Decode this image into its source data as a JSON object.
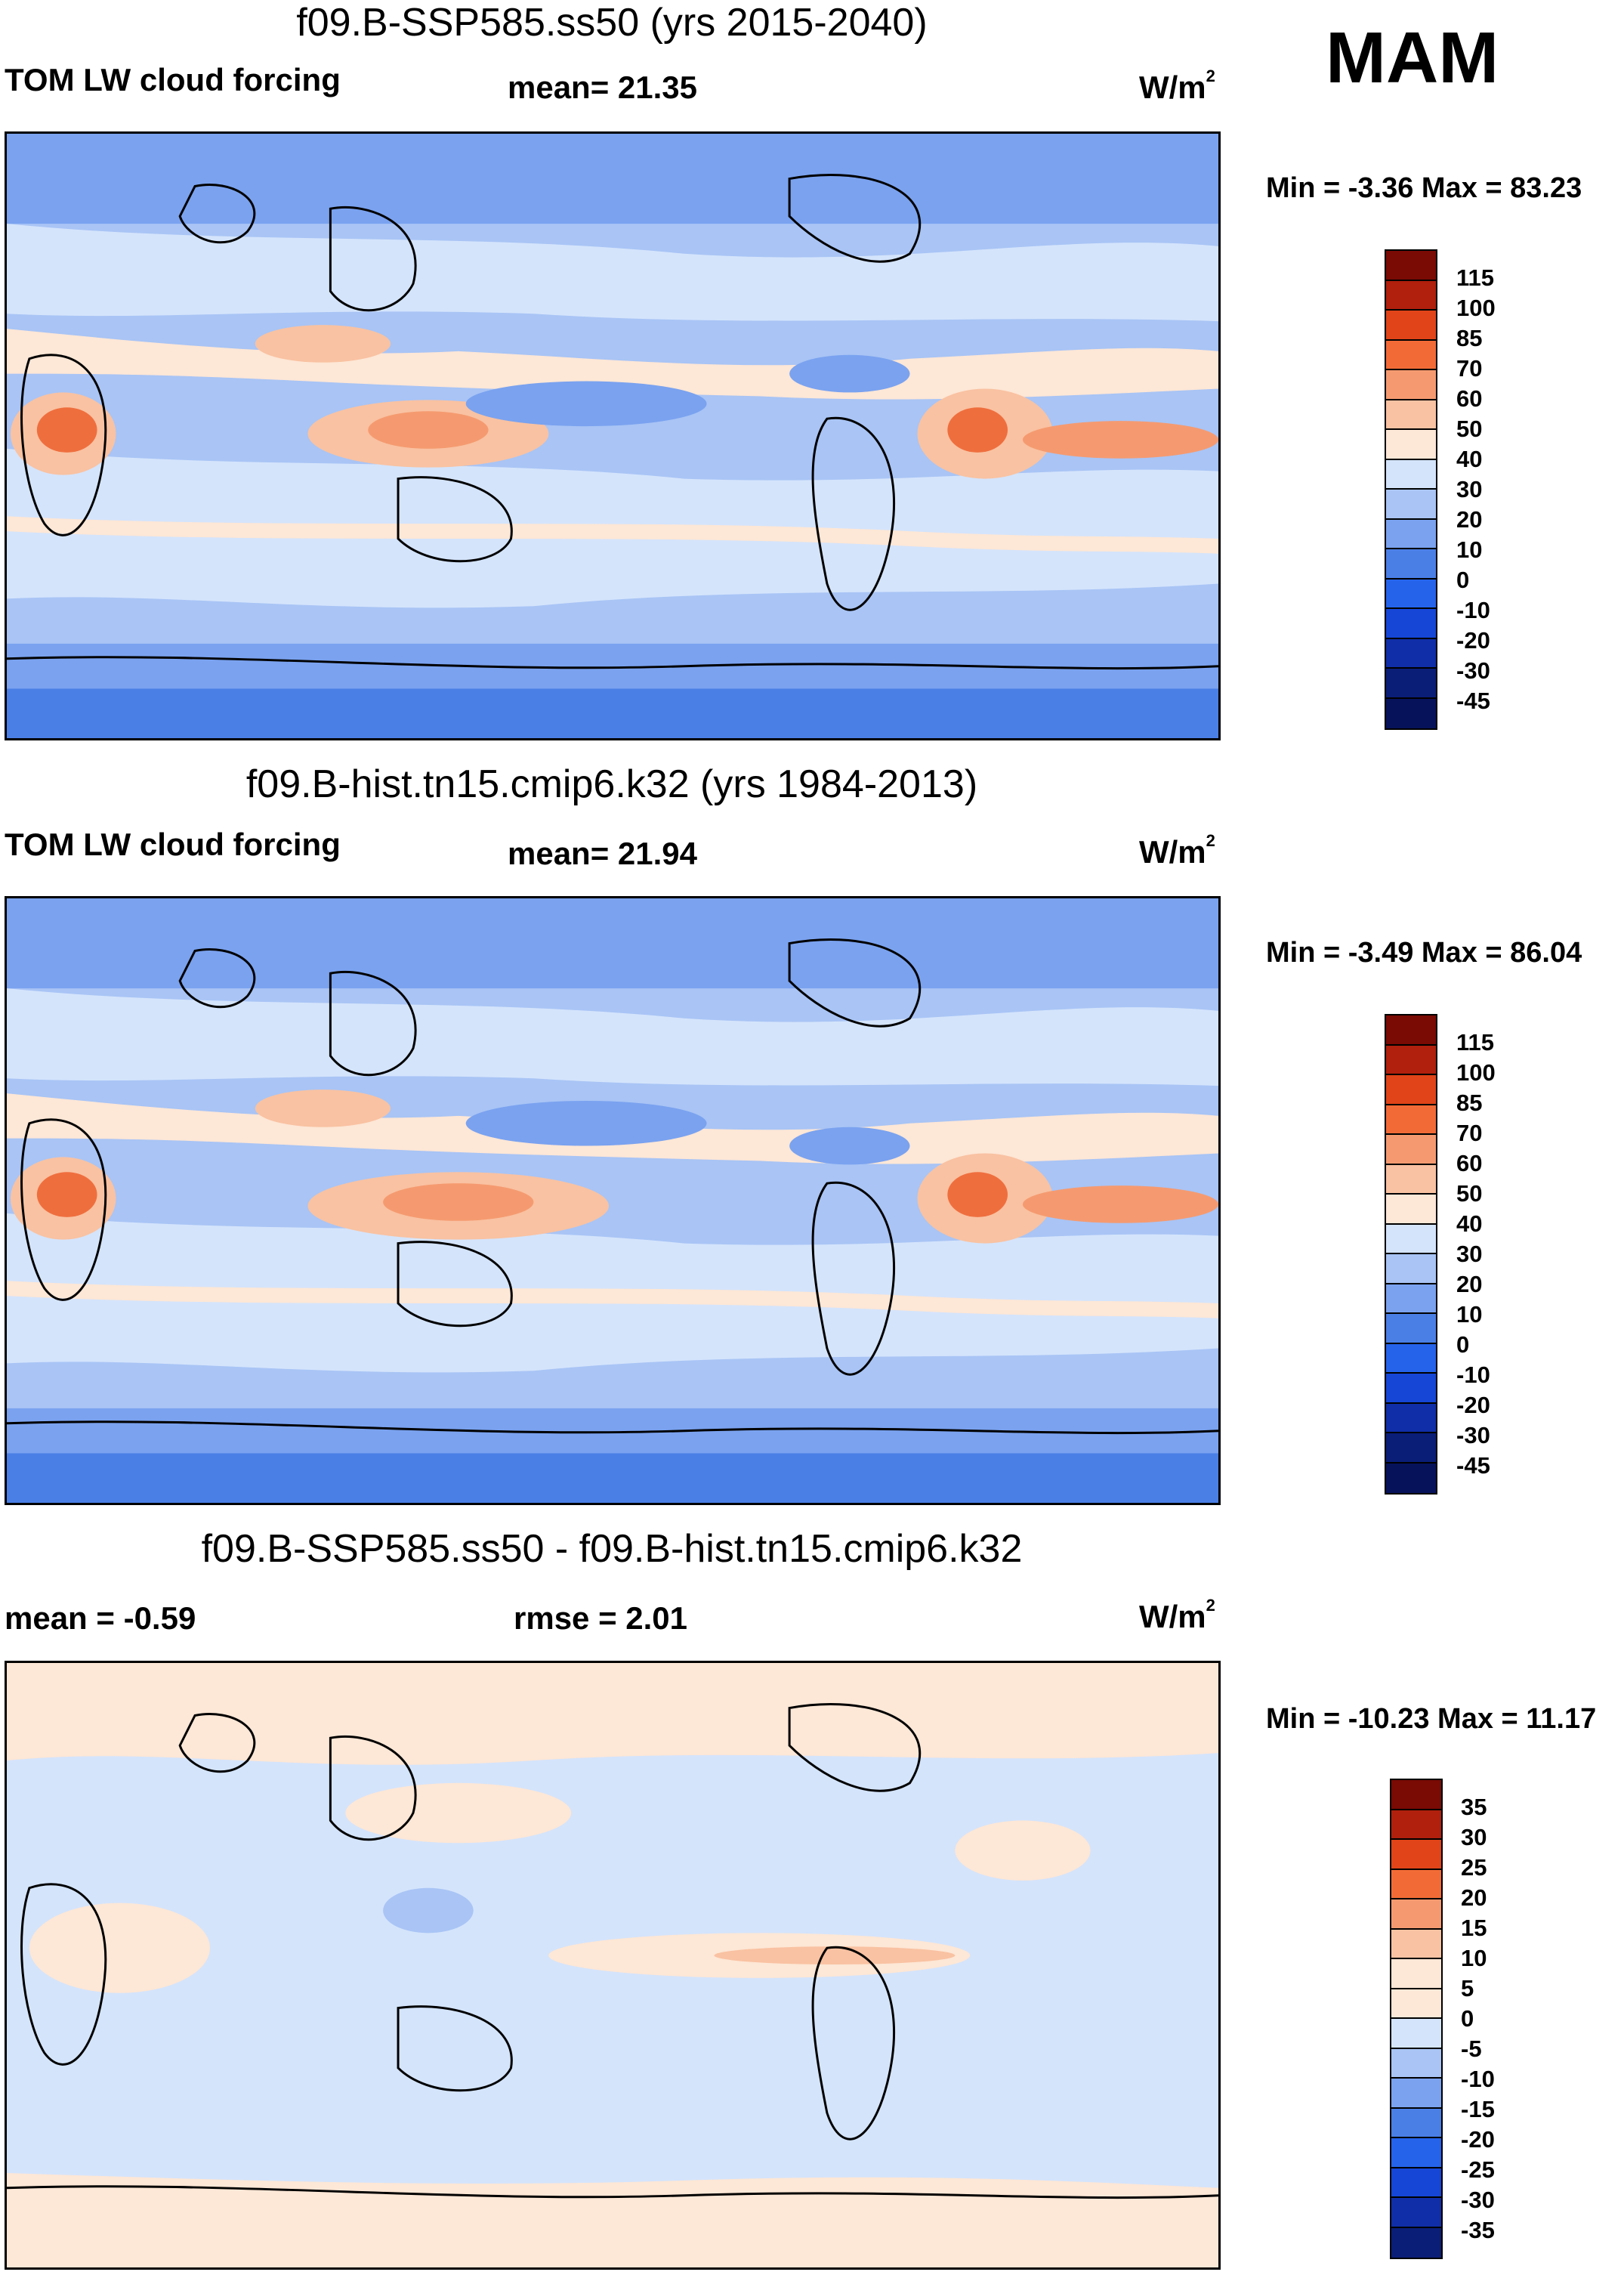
{
  "season": "MAM",
  "colors": {
    "diverging": [
      "#0a1e78",
      "#0f2ea8",
      "#1546d6",
      "#2563eb",
      "#4a7fe6",
      "#7aa2ef",
      "#a9c4f5",
      "#d4e4fb",
      "#fde7d6",
      "#f9c2a2",
      "#f59a70",
      "#ef6e3e",
      "#e04418",
      "#c22a10",
      "#9c1408",
      "#7a0a04"
    ]
  },
  "panels": [
    {
      "title": "f09.B-SSP585.ss50 (yrs 2015-2040)",
      "left_label": "TOM LW cloud forcing",
      "mid_label": "mean=  21.35",
      "units_base": "W/m",
      "units_exp": "2",
      "minmax": "Min =  -3.36 Max =  83.23",
      "ticks": [
        "115",
        "100",
        "85",
        "70",
        "60",
        "50",
        "40",
        "30",
        "20",
        "10",
        "0",
        "-10",
        "-20",
        "-30",
        "-45"
      ],
      "colors": [
        "#7a0a04",
        "#b0200c",
        "#e04418",
        "#f26b36",
        "#f59a70",
        "#f9c2a2",
        "#fde7d6",
        "#d4e4fb",
        "#a9c4f5",
        "#7aa2ef",
        "#4a7fe6",
        "#2563eb",
        "#1546d6",
        "#0f2ea8",
        "#0a1e78",
        "#06125a"
      ]
    },
    {
      "title": "f09.B-hist.tn15.cmip6.k32 (yrs 1984-2013)",
      "left_label": "TOM LW cloud forcing",
      "mid_label": "mean=  21.94",
      "units_base": "W/m",
      "units_exp": "2",
      "minmax": "Min =  -3.49 Max =  86.04",
      "ticks": [
        "115",
        "100",
        "85",
        "70",
        "60",
        "50",
        "40",
        "30",
        "20",
        "10",
        "0",
        "-10",
        "-20",
        "-30",
        "-45"
      ],
      "colors": [
        "#7a0a04",
        "#b0200c",
        "#e04418",
        "#f26b36",
        "#f59a70",
        "#f9c2a2",
        "#fde7d6",
        "#d4e4fb",
        "#a9c4f5",
        "#7aa2ef",
        "#4a7fe6",
        "#2563eb",
        "#1546d6",
        "#0f2ea8",
        "#0a1e78",
        "#06125a"
      ]
    },
    {
      "title": "f09.B-SSP585.ss50 - f09.B-hist.tn15.cmip6.k32",
      "left_label": "mean =  -0.59",
      "mid_label": "rmse =   2.01",
      "units_base": "W/m",
      "units_exp": "2",
      "minmax": "Min = -10.23 Max =  11.17",
      "ticks": [
        "35",
        "30",
        "25",
        "20",
        "15",
        "10",
        "5",
        "0",
        "-5",
        "-10",
        "-15",
        "-20",
        "-25",
        "-30",
        "-35"
      ],
      "colors": [
        "#7a0a04",
        "#b0200c",
        "#e04418",
        "#f26b36",
        "#f59a70",
        "#f9c2a2",
        "#fde7d6",
        "#fde7d6",
        "#d4e4fb",
        "#a9c4f5",
        "#7aa2ef",
        "#4a7fe6",
        "#2563eb",
        "#1546d6",
        "#0f2ea8",
        "#0a1e78"
      ]
    }
  ]
}
